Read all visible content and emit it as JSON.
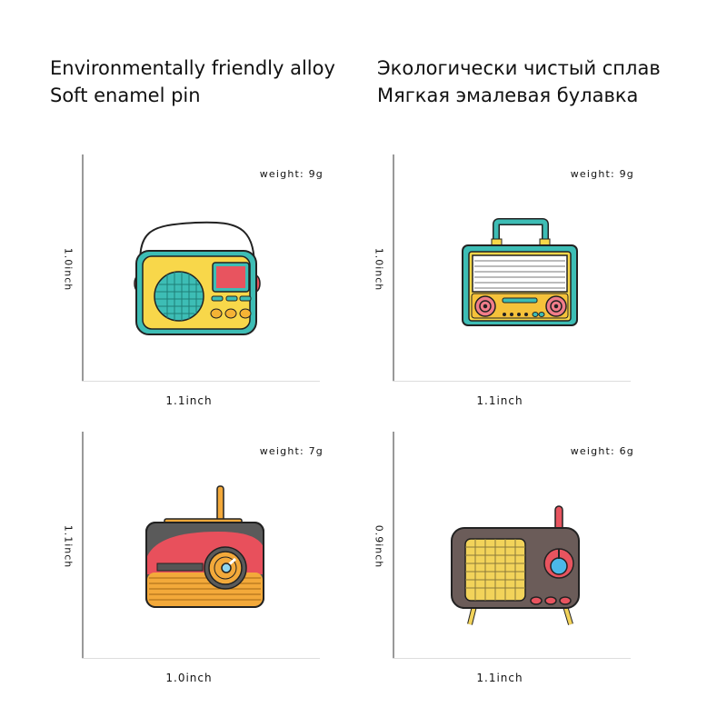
{
  "header": {
    "title_en": [
      "Environmentally friendly alloy",
      "Soft enamel pin"
    ],
    "title_ru": [
      "Экологически чистый сплав",
      "Мягкая эмалевая булавка"
    ]
  },
  "products": [
    {
      "weight": "weight: 9g",
      "height": "1.0inch",
      "width": "1.1inch",
      "icon": "handheld-radio-with-strap"
    },
    {
      "weight": "weight: 9g",
      "height": "1.0inch",
      "width": "1.1inch",
      "icon": "boombox-radio-with-handle"
    },
    {
      "weight": "weight: 7g",
      "height": "1.1inch",
      "width": "1.0inch",
      "icon": "red-retro-radio-with-antenna"
    },
    {
      "weight": "weight: 6g",
      "height": "0.9inch",
      "width": "1.1inch",
      "icon": "brown-tv-style-radio"
    }
  ],
  "colors": {
    "teal": "#3dbdb5",
    "yellow": "#f8d74a",
    "red": "#e8545f",
    "orange": "#f3a93a",
    "gray": "#5a5a5a",
    "brown": "#6b5c59",
    "blue": "#4bb8e8"
  }
}
